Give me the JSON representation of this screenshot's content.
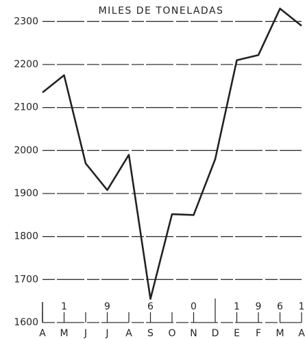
{
  "chart_data": {
    "type": "line",
    "title": "MILES DE TONELADAS",
    "categories": [
      "A",
      "M",
      "J",
      "J",
      "A",
      "S",
      "O",
      "N",
      "D",
      "E",
      "F",
      "M",
      "A"
    ],
    "year_labels": [
      null,
      "1",
      null,
      "9",
      null,
      "6",
      null,
      "0",
      null,
      "1",
      "9",
      "6",
      "1"
    ],
    "series": [
      {
        "name": null,
        "color": "#222222",
        "values": [
          2135,
          2175,
          1970,
          1908,
          1990,
          1655,
          1852,
          1850,
          1980,
          2210,
          2222,
          2330,
          2290
        ]
      }
    ],
    "ylim": [
      1600,
      2350
    ],
    "yticks": [
      1600,
      1700,
      1800,
      1900,
      2000,
      2100,
      2200,
      2300
    ],
    "grid": true
  }
}
